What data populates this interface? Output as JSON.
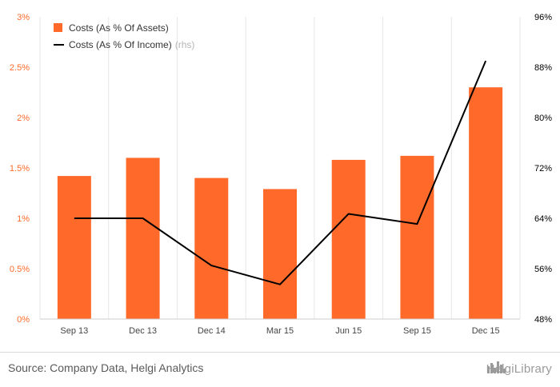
{
  "chart_data": {
    "type": "bar",
    "categories": [
      "Sep 13",
      "Dec 13",
      "Dec 14",
      "Mar 15",
      "Jun 15",
      "Sep 15",
      "Dec 15"
    ],
    "series": [
      {
        "name": "Costs (As % Of Assets)",
        "type": "bar",
        "axis": "left",
        "values": [
          1.42,
          1.6,
          1.4,
          1.29,
          1.58,
          1.62,
          2.3
        ]
      },
      {
        "name": "Costs (As % Of Income)",
        "name_suffix": "(rhs)",
        "type": "line",
        "axis": "right",
        "values": [
          64.0,
          64.0,
          56.5,
          53.5,
          64.7,
          63.1,
          89.0
        ]
      }
    ],
    "ylim_left": [
      0,
      3
    ],
    "yticks_left": [
      "0%",
      "0.5%",
      "1%",
      "1.5%",
      "2%",
      "2.5%",
      "3%"
    ],
    "ylim_right": [
      48,
      96
    ],
    "yticks_right": [
      "48%",
      "56%",
      "64%",
      "72%",
      "80%",
      "88%",
      "96%"
    ],
    "legend_position": "top-left",
    "grid": "vertical",
    "colors": {
      "bar": "#ff6a2b",
      "line": "#000000",
      "left_ticks": "#ff6a2b",
      "right_ticks": "#000000"
    }
  },
  "footer": {
    "source": "Source: Company Data, Helgi Analytics",
    "logo_text": "HelgiLibrary",
    "logo_icon": "bar-chart-icon"
  }
}
